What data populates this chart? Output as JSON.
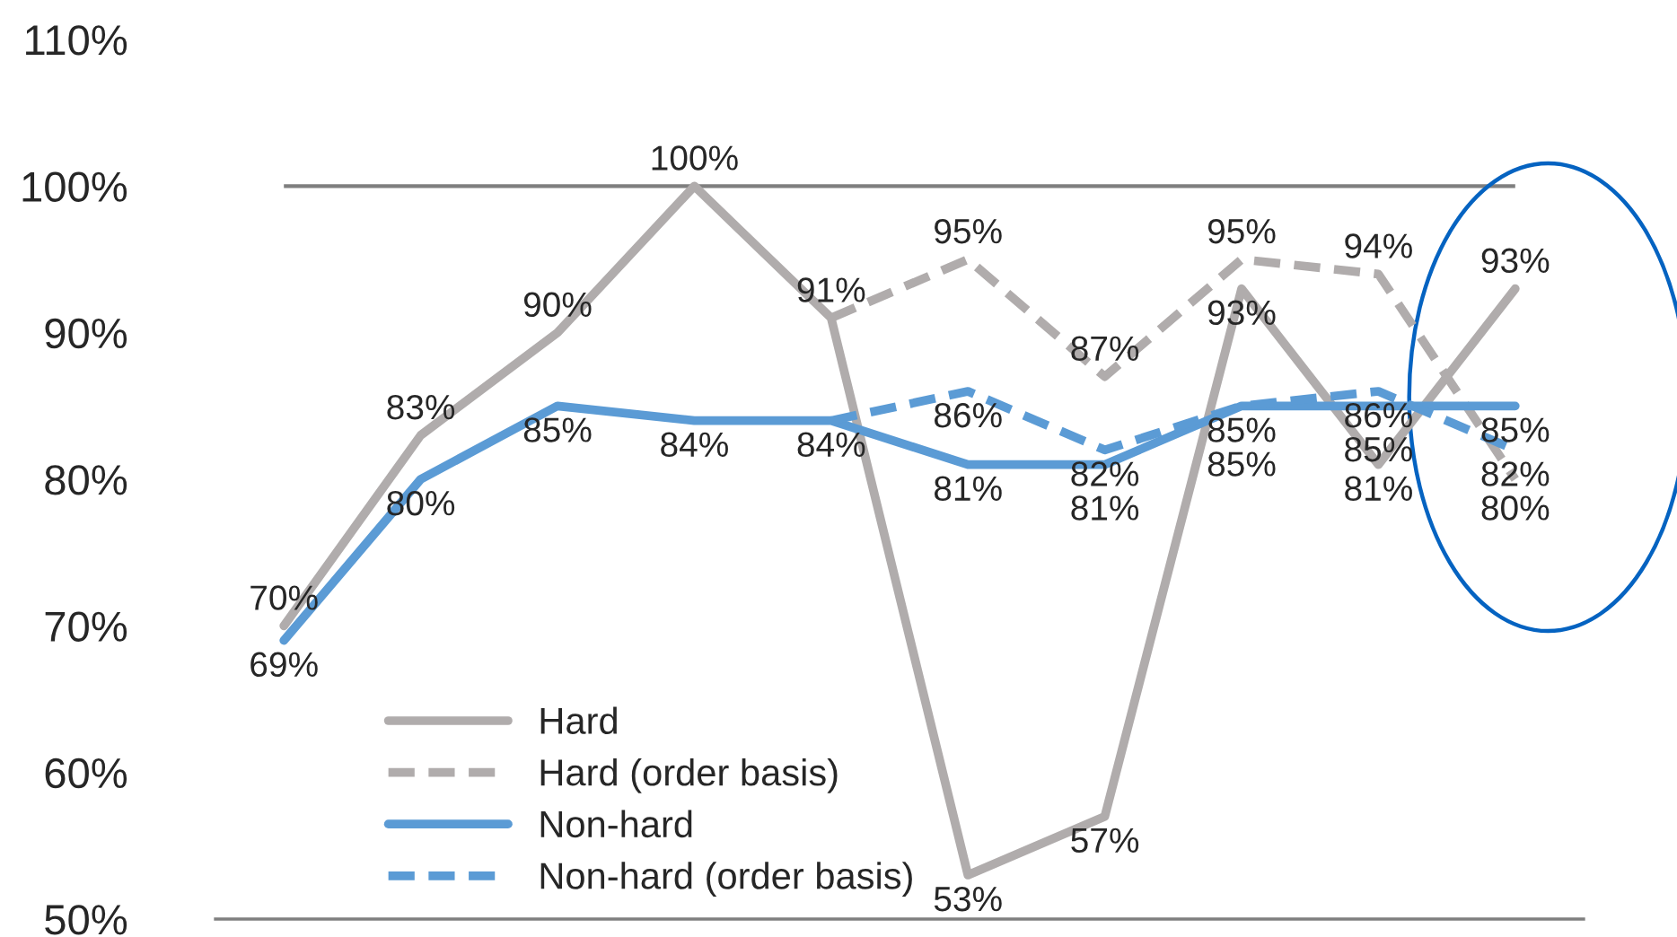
{
  "chart_data": {
    "type": "line",
    "categories": [
      null,
      null,
      null,
      null,
      null,
      null,
      null,
      null,
      null,
      null
    ],
    "series": [
      {
        "name": "Hard",
        "color": "#b0acac",
        "line_style": "solid",
        "values": [
          70,
          83,
          90,
          100,
          91,
          53,
          57,
          93,
          81,
          93
        ],
        "value_labels": [
          "70%",
          "83%",
          "90%",
          "100%",
          "91%",
          "53%",
          "57%",
          "93%",
          "81%",
          "93%"
        ]
      },
      {
        "name": "Hard (order basis)",
        "color": "#b0acac",
        "line_style": "dashed",
        "values": [
          null,
          null,
          null,
          null,
          91,
          95,
          87,
          95,
          94,
          80
        ],
        "value_labels": [
          null,
          null,
          null,
          null,
          null,
          "95%",
          "87%",
          "95%",
          "94%",
          "80%"
        ]
      },
      {
        "name": "Non-hard",
        "color": "#5b9bd5",
        "line_style": "solid",
        "values": [
          69,
          80,
          85,
          84,
          84,
          81,
          81,
          85,
          85,
          85
        ],
        "value_labels": [
          "69%",
          "80%",
          "85%",
          "84%",
          "84%",
          "81%",
          "81%",
          "85%",
          "85%",
          "85%"
        ]
      },
      {
        "name": "Non-hard (order basis)",
        "color": "#5b9bd5",
        "line_style": "dashed",
        "values": [
          null,
          null,
          null,
          null,
          84,
          86,
          82,
          85,
          86,
          82
        ],
        "value_labels": [
          null,
          null,
          null,
          null,
          null,
          "86%",
          "82%",
          "85%",
          "86%",
          "82%"
        ]
      }
    ],
    "ylim": [
      50,
      110
    ],
    "yticks": [
      {
        "value": 50,
        "label": "50%"
      },
      {
        "value": 60,
        "label": "60%"
      },
      {
        "value": 70,
        "label": "70%"
      },
      {
        "value": 80,
        "label": "80%"
      },
      {
        "value": 90,
        "label": "90%"
      },
      {
        "value": 100,
        "label": "100%"
      },
      {
        "value": 110,
        "label": "110%"
      }
    ],
    "ref_lines": [
      {
        "axis": "y",
        "value": 100,
        "color": "#7f7f7f"
      }
    ],
    "grid": false,
    "legend": "bottom left",
    "marker": "none"
  }
}
